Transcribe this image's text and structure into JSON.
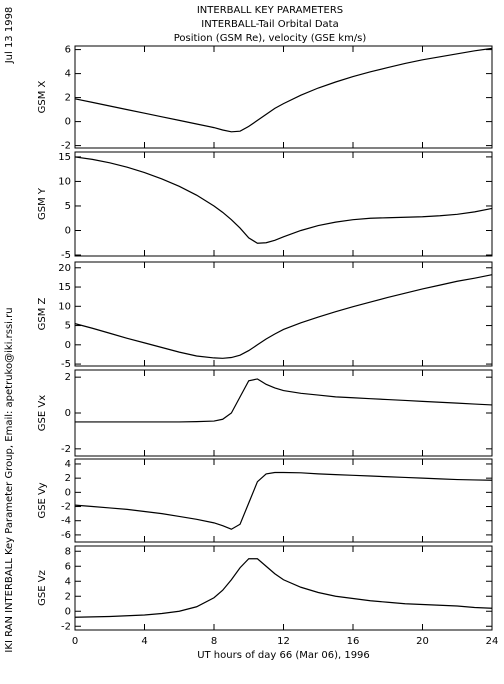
{
  "header": {
    "title": "INTERBALL KEY PARAMETERS",
    "subtitle": "INTERBALL-Tail Orbital Data",
    "description": "Position (GSM Re), velocity (GSE km/s)"
  },
  "date_note": "Jul 13 1998",
  "credit_note": "IKI RAN INTERBALL Key Parameter Group, Email: apetruko@iki.rssi.ru",
  "chart_data": [
    {
      "type": "line",
      "ylabel": "GSM X",
      "xlim": [
        0,
        24
      ],
      "ylim": [
        -2.2,
        6.3
      ],
      "yticks": [
        -2,
        0,
        2,
        4,
        6
      ],
      "x": [
        0,
        1,
        2,
        3,
        4,
        5,
        6,
        7,
        8,
        8.5,
        9,
        9.5,
        10,
        10.5,
        11,
        11.5,
        12,
        13,
        14,
        15,
        16,
        17,
        18,
        19,
        20,
        21,
        22,
        23,
        24
      ],
      "values": [
        1.9,
        1.6,
        1.3,
        1.0,
        0.7,
        0.4,
        0.1,
        -0.2,
        -0.5,
        -0.7,
        -0.85,
        -0.8,
        -0.4,
        0.1,
        0.6,
        1.1,
        1.5,
        2.2,
        2.8,
        3.3,
        3.75,
        4.15,
        4.5,
        4.85,
        5.15,
        5.4,
        5.65,
        5.9,
        6.1
      ],
      "color": "#000000"
    },
    {
      "type": "line",
      "ylabel": "GSM Y",
      "xlim": [
        0,
        24
      ],
      "ylim": [
        -5.2,
        16
      ],
      "yticks": [
        -5,
        0,
        5,
        10,
        15
      ],
      "x": [
        0,
        1,
        2,
        3,
        4,
        5,
        6,
        7,
        8,
        8.5,
        9,
        9.5,
        10,
        10.5,
        11,
        11.5,
        12,
        13,
        14,
        15,
        16,
        17,
        18,
        19,
        20,
        21,
        22,
        23,
        24
      ],
      "values": [
        15,
        14.5,
        13.8,
        12.9,
        11.8,
        10.5,
        9,
        7.2,
        5,
        3.7,
        2.2,
        0.5,
        -1.5,
        -2.6,
        -2.5,
        -2,
        -1.3,
        0,
        1,
        1.7,
        2.2,
        2.5,
        2.6,
        2.7,
        2.8,
        3,
        3.3,
        3.8,
        4.5
      ],
      "color": "#000000"
    },
    {
      "type": "line",
      "ylabel": "GSM Z",
      "xlim": [
        0,
        24
      ],
      "ylim": [
        -5.5,
        21.5
      ],
      "yticks": [
        -5,
        0,
        5,
        10,
        15,
        20
      ],
      "x": [
        0,
        1,
        2,
        3,
        4,
        5,
        6,
        7,
        8,
        8.5,
        9,
        9.5,
        10,
        10.5,
        11,
        11.5,
        12,
        13,
        14,
        15,
        16,
        17,
        18,
        19,
        20,
        21,
        22,
        23,
        24
      ],
      "values": [
        5.5,
        4.3,
        3,
        1.7,
        0.5,
        -0.7,
        -1.9,
        -2.9,
        -3.4,
        -3.5,
        -3.3,
        -2.7,
        -1.5,
        0,
        1.5,
        2.8,
        4,
        5.7,
        7.2,
        8.6,
        9.9,
        11.1,
        12.3,
        13.4,
        14.5,
        15.5,
        16.5,
        17.3,
        18.2
      ],
      "color": "#000000"
    },
    {
      "type": "line",
      "ylabel": "GSE Vx",
      "xlim": [
        0,
        24
      ],
      "ylim": [
        -2.4,
        2.4
      ],
      "yticks": [
        -2,
        0,
        2
      ],
      "x": [
        0,
        1,
        2,
        3,
        4,
        5,
        6,
        7,
        8,
        8.5,
        9,
        9.5,
        10,
        10.5,
        11,
        11.5,
        12,
        13,
        14,
        15,
        16,
        17,
        18,
        19,
        20,
        21,
        22,
        23,
        24
      ],
      "values": [
        -0.5,
        -0.5,
        -0.5,
        -0.5,
        -0.5,
        -0.5,
        -0.5,
        -0.48,
        -0.45,
        -0.35,
        0,
        0.9,
        1.8,
        1.9,
        1.6,
        1.4,
        1.25,
        1.1,
        1.0,
        0.9,
        0.85,
        0.8,
        0.75,
        0.7,
        0.65,
        0.6,
        0.55,
        0.5,
        0.45
      ],
      "color": "#000000"
    },
    {
      "type": "line",
      "ylabel": "GSE Vy",
      "xlim": [
        0,
        24
      ],
      "ylim": [
        -7,
        4.7
      ],
      "yticks": [
        -6,
        -4,
        -2,
        0,
        2,
        4
      ],
      "x": [
        0,
        1,
        2,
        3,
        4,
        5,
        6,
        7,
        8,
        8.5,
        9,
        9.5,
        10,
        10.5,
        11,
        11.5,
        12,
        13,
        14,
        15,
        16,
        17,
        18,
        19,
        20,
        21,
        22,
        23,
        24
      ],
      "values": [
        -1.8,
        -2,
        -2.2,
        -2.4,
        -2.7,
        -3,
        -3.4,
        -3.8,
        -4.3,
        -4.7,
        -5.2,
        -4.5,
        -1.5,
        1.5,
        2.6,
        2.8,
        2.8,
        2.75,
        2.6,
        2.5,
        2.4,
        2.3,
        2.2,
        2.1,
        2,
        1.9,
        1.8,
        1.75,
        1.7
      ],
      "color": "#000000"
    },
    {
      "type": "line",
      "ylabel": "GSE Vz",
      "xlabel": "UT hours of day  66 (Mar 06), 1996",
      "xlim": [
        0,
        24
      ],
      "xticks": [
        0,
        4,
        8,
        12,
        16,
        20,
        24
      ],
      "ylim": [
        -2.5,
        8.7
      ],
      "yticks": [
        -2,
        0,
        2,
        4,
        6,
        8
      ],
      "x": [
        0,
        1,
        2,
        3,
        4,
        5,
        6,
        7,
        8,
        8.5,
        9,
        9.5,
        10,
        10.5,
        11,
        11.5,
        12,
        13,
        14,
        15,
        16,
        17,
        18,
        19,
        20,
        21,
        22,
        23,
        24
      ],
      "values": [
        -0.8,
        -0.75,
        -0.7,
        -0.6,
        -0.5,
        -0.3,
        0,
        0.6,
        1.8,
        2.8,
        4.2,
        5.8,
        7,
        7,
        6,
        5,
        4.2,
        3.2,
        2.5,
        2,
        1.7,
        1.4,
        1.2,
        1,
        0.9,
        0.8,
        0.7,
        0.5,
        0.4
      ],
      "color": "#000000"
    }
  ]
}
